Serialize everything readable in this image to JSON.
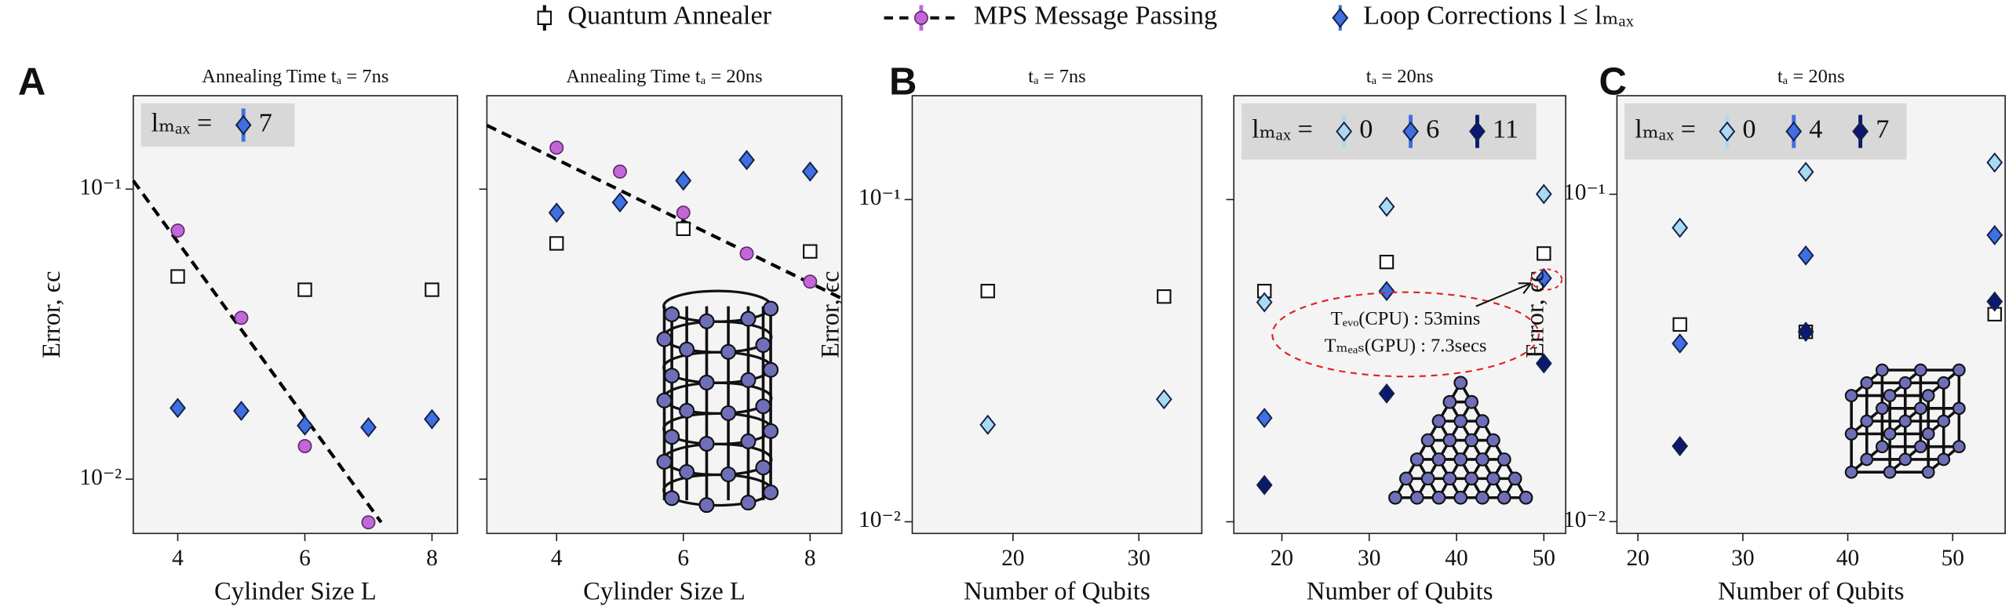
{
  "legend": {
    "entries": [
      {
        "name": "Quantum Annealer",
        "marker": "square",
        "color": "#ffffff"
      },
      {
        "name": "MPS Message Passing",
        "marker": "circle",
        "color": "#c367d8",
        "line": "dashed"
      },
      {
        "name": "Loop Corrections l ≤ lₘₐₓ",
        "marker": "diamond",
        "color": "#3f6fe0"
      }
    ]
  },
  "panel_labels": [
    "A",
    "B",
    "C"
  ],
  "chart_data": [
    {
      "type": "scatter",
      "title": "Annealing Time tₐ = 7ns",
      "xlabel": "Cylinder Size L",
      "ylabel": "Error, ϵc",
      "xlim": [
        3.3,
        8.4
      ],
      "ylim": [
        0.0065,
        0.21
      ],
      "log_y": true,
      "xticks": [
        4,
        6,
        8
      ],
      "yticks": [
        {
          "value": 0.1,
          "label": "10⁻¹"
        },
        {
          "value": 0.01,
          "label": "10⁻²"
        }
      ],
      "fit": {
        "x": [
          3.3,
          7.2
        ],
        "values": [
          0.107,
          0.0071
        ],
        "color": "#000000"
      },
      "series": [
        {
          "marker": "square",
          "color": "#ffffff",
          "x": [
            4,
            6,
            8
          ],
          "values": [
            0.05,
            0.045,
            0.045
          ]
        },
        {
          "marker": "circle",
          "color": "#c367d8",
          "x": [
            4,
            5,
            6,
            7
          ],
          "values": [
            0.072,
            0.036,
            0.013,
            0.0071
          ]
        },
        {
          "name": "7",
          "marker": "diamond",
          "color": "#3f6fe0",
          "x": [
            4,
            5,
            6,
            7,
            8
          ],
          "values": [
            0.0176,
            0.0172,
            0.0153,
            0.0151,
            0.0161
          ]
        }
      ],
      "inset_legend": {
        "label": "lₘₐₓ ="
      }
    },
    {
      "type": "scatter",
      "title": "Annealing Time tₐ = 20ns",
      "xlabel": "Cylinder Size L",
      "xlim": [
        2.9,
        8.5
      ],
      "ylim": [
        0.0065,
        0.21
      ],
      "log_y": true,
      "xticks": [
        4,
        6,
        8
      ],
      "yticks": [
        0.1,
        0.01
      ],
      "ytick_labels": false,
      "fit": {
        "x": [
          2.9,
          8.5
        ],
        "values": [
          0.166,
          0.042
        ],
        "color": "#000000"
      },
      "series": [
        {
          "marker": "square",
          "color": "#ffffff",
          "x": [
            4,
            6,
            8
          ],
          "values": [
            0.065,
            0.073,
            0.061
          ]
        },
        {
          "marker": "circle",
          "color": "#c367d8",
          "x": [
            4,
            5,
            6,
            7,
            8
          ],
          "values": [
            0.139,
            0.115,
            0.083,
            0.06,
            0.048
          ]
        },
        {
          "marker": "diamond",
          "color": "#3f6fe0",
          "x": [
            4,
            5,
            6,
            7,
            8
          ],
          "values": [
            0.083,
            0.09,
            0.107,
            0.126,
            0.115
          ]
        }
      ]
    },
    {
      "type": "scatter",
      "title": "tₐ = 7ns",
      "xlabel": "Number of Qubits",
      "ylabel": "Error, ϵc",
      "xlim": [
        12,
        35
      ],
      "ylim": [
        0.0092,
        0.21
      ],
      "log_y": true,
      "xticks": [
        20,
        30
      ],
      "yticks": [
        {
          "value": 0.1,
          "label": "10⁻¹"
        },
        {
          "value": 0.01,
          "label": "10⁻²"
        }
      ],
      "series": [
        {
          "marker": "square",
          "color": "#ffffff",
          "x": [
            18,
            32
          ],
          "values": [
            0.052,
            0.05
          ]
        },
        {
          "marker": "diamond",
          "color": "#a9daf0",
          "x": [
            18,
            32
          ],
          "values": [
            0.02,
            0.024
          ]
        }
      ]
    },
    {
      "type": "scatter",
      "title": "tₐ = 20ns",
      "xlabel": "Number of Qubits",
      "xlim": [
        14.5,
        52.5
      ],
      "ylim": [
        0.0092,
        0.21
      ],
      "log_y": true,
      "xticks": [
        20,
        30,
        40,
        50
      ],
      "yticks": [
        0.1,
        0.01
      ],
      "ytick_labels": false,
      "series": [
        {
          "marker": "square",
          "color": "#ffffff",
          "x": [
            18,
            32,
            50
          ],
          "values": [
            0.052,
            0.064,
            0.068
          ]
        },
        {
          "name": "0",
          "marker": "diamond",
          "color": "#a9daf0",
          "x": [
            18,
            32,
            50
          ],
          "values": [
            0.048,
            0.095,
            0.104
          ]
        },
        {
          "name": "6",
          "marker": "diamond",
          "color": "#3f6fe0",
          "x": [
            18,
            32,
            50
          ],
          "values": [
            0.021,
            0.052,
            0.057
          ]
        },
        {
          "name": "11",
          "marker": "diamond",
          "color": "#0b1a6e",
          "x": [
            18,
            32,
            50
          ],
          "values": [
            0.013,
            0.025,
            0.031
          ]
        }
      ],
      "inset_legend": {
        "label": "lₘₐₓ ="
      },
      "annotations": [
        "Tₑᵥₒ(CPU) : 53mins",
        "Tₘₑₐₛ(GPU) : 7.3secs"
      ]
    },
    {
      "type": "scatter",
      "title": "tₐ = 20ns",
      "xlabel": "Number of Qubits",
      "ylabel": "Error, ϵc",
      "xlim": [
        18,
        55
      ],
      "ylim": [
        0.0092,
        0.2
      ],
      "log_y": true,
      "xticks": [
        20,
        30,
        40,
        50
      ],
      "yticks": [
        {
          "value": 0.1,
          "label": "10⁻¹"
        },
        {
          "value": 0.01,
          "label": "10⁻²"
        }
      ],
      "series": [
        {
          "marker": "square",
          "color": "#ffffff",
          "x": [
            24,
            36,
            54
          ],
          "values": [
            0.04,
            0.038,
            0.043
          ]
        },
        {
          "name": "0",
          "marker": "diamond",
          "color": "#a9daf0",
          "x": [
            24,
            36,
            54
          ],
          "values": [
            0.079,
            0.117,
            0.125
          ]
        },
        {
          "name": "4",
          "marker": "diamond",
          "color": "#3f6fe0",
          "x": [
            24,
            36,
            54
          ],
          "values": [
            0.035,
            0.065,
            0.075
          ]
        },
        {
          "name": "7",
          "marker": "diamond",
          "color": "#0b1a6e",
          "x": [
            24,
            36,
            54
          ],
          "values": [
            0.017,
            0.038,
            0.047
          ]
        }
      ],
      "inset_legend": {
        "label": "lₘₐₓ ="
      }
    }
  ]
}
